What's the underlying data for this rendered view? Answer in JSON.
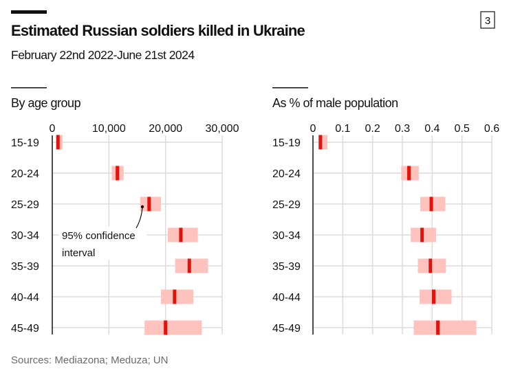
{
  "header": {
    "title": "Estimated Russian soldiers killed in Ukraine",
    "subtitle": "February 22nd 2022-June 21st 2024",
    "badge": "3"
  },
  "footer": {
    "sources": "Sources: Mediazona; Meduza; UN"
  },
  "colors": {
    "estimate": "#e3120b",
    "interval": "#ffc2bd",
    "grid": "#dcdcdc",
    "axis": "#111111"
  },
  "chart_data": [
    {
      "type": "bar",
      "subtype": "interval",
      "title": "By age group",
      "categories": [
        "15-19",
        "20-24",
        "25-29",
        "30-34",
        "35-39",
        "40-44",
        "45-49"
      ],
      "xlim": [
        0,
        30000
      ],
      "xticks": [
        0,
        10000,
        20000,
        30000
      ],
      "xtick_labels": [
        "0",
        "10,000",
        "20,000",
        "30,000"
      ],
      "grid": true,
      "estimate": [
        1000,
        11500,
        17100,
        22700,
        24200,
        21600,
        20000
      ],
      "lower": [
        700,
        10500,
        15500,
        20400,
        21700,
        19200,
        16300
      ],
      "upper": [
        1800,
        12600,
        19200,
        25700,
        27500,
        24900,
        26400
      ],
      "annotation": {
        "line1": "95% confidence",
        "line2": "interval"
      }
    },
    {
      "type": "bar",
      "subtype": "interval",
      "title": "As % of male population",
      "categories": [
        "15-19",
        "20-24",
        "25-29",
        "30-34",
        "35-39",
        "40-44",
        "45-49"
      ],
      "xlim": [
        0,
        0.6
      ],
      "xticks": [
        0,
        0.1,
        0.2,
        0.3,
        0.4,
        0.5,
        0.6
      ],
      "xtick_labels": [
        "0",
        "0.1",
        "0.2",
        "0.3",
        "0.4",
        "0.5",
        "0.6"
      ],
      "grid": true,
      "estimate": [
        0.025,
        0.322,
        0.397,
        0.366,
        0.394,
        0.405,
        0.419
      ],
      "lower": [
        0.018,
        0.296,
        0.36,
        0.328,
        0.352,
        0.358,
        0.338
      ],
      "upper": [
        0.049,
        0.355,
        0.444,
        0.413,
        0.446,
        0.465,
        0.548
      ]
    }
  ]
}
